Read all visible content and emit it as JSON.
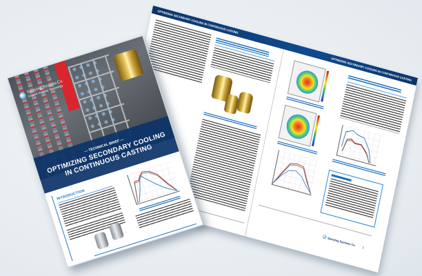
{
  "brand": {
    "name": "Spraying Systems Co.",
    "tagline": "Experts in Spray Technology"
  },
  "cover": {
    "kicker": "— TECHNICAL BRIEF —",
    "title_line1": "OPTIMIZING SECONDARY COOLING",
    "title_line2": "IN CONTINUOUS CASTING",
    "section_heading": "INTRODUCTION"
  },
  "spread": {
    "running_header": "OPTIMIZING SECONDARY COOLING IN CONTINUOUS CASTING",
    "page_number": "3"
  },
  "colors": {
    "brand_blue": "#0d3469",
    "accent_blue": "#1a6fc0",
    "background": "#e7ecf0"
  }
}
